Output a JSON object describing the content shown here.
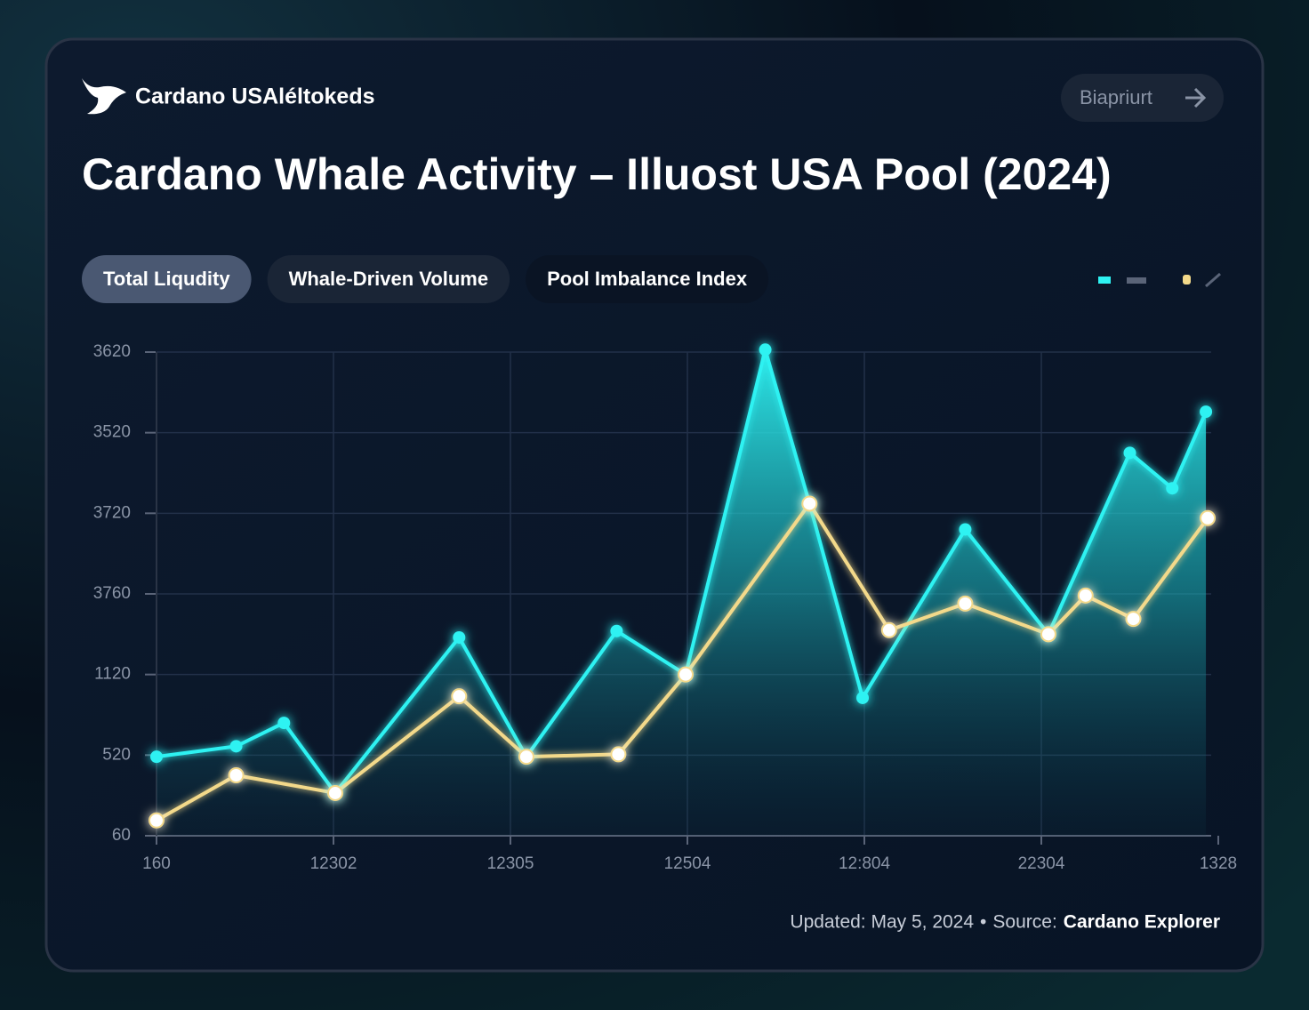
{
  "header": {
    "brand": "Cardano USAléltokeds",
    "button": "Biapriurt"
  },
  "tabs": [
    "Total Liqudity",
    "Whale-Driven Volume",
    "Pool Imbalance Index"
  ],
  "footer": {
    "updated": "Updated: May 5, 2024",
    "separator": "•",
    "source_label": "Source:",
    "source": "Cardano Explorer"
  },
  "chart_data": {
    "type": "area",
    "title": "Cardano Whale Activity – Illuost USA Pool (2024)",
    "xlim": [
      0,
      6
    ],
    "xticks": [
      {
        "value": 0,
        "label": "160"
      },
      {
        "value": 1,
        "label": "12302"
      },
      {
        "value": 2,
        "label": "12305"
      },
      {
        "value": 3,
        "label": "12504"
      },
      {
        "value": 4,
        "label": "12:804"
      },
      {
        "value": 5,
        "label": "22304"
      },
      {
        "value": 6,
        "label": "1328"
      }
    ],
    "ylim": [
      0,
      6
    ],
    "yticks": [
      {
        "value": 0,
        "label": "60"
      },
      {
        "value": 1,
        "label": "520"
      },
      {
        "value": 2,
        "label": "1120"
      },
      {
        "value": 3,
        "label": "3760"
      },
      {
        "value": 4,
        "label": "3720"
      },
      {
        "value": 5,
        "label": "3520"
      },
      {
        "value": 6,
        "label": "3620"
      }
    ],
    "grid": true,
    "series": [
      {
        "color": "#2ef2f2",
        "fill": true,
        "x": [
          0,
          0.45,
          0.72,
          1.01,
          1.71,
          2.09,
          2.6,
          2.99,
          3.44,
          3.69,
          3.99,
          4.57,
          5.04,
          5.5,
          5.74,
          5.93
        ],
        "values": [
          0.98,
          1.11,
          1.4,
          0.53,
          2.46,
          0.98,
          2.54,
          2.0,
          6.03,
          4.12,
          1.71,
          3.8,
          2.5,
          4.75,
          4.31,
          5.26
        ]
      },
      {
        "color": "#f3d98a",
        "fill": false,
        "x": [
          0,
          0.45,
          1.01,
          1.71,
          2.09,
          2.61,
          2.99,
          3.69,
          4.14,
          4.57,
          5.04,
          5.25,
          5.52,
          5.94
        ],
        "values": [
          0.19,
          0.75,
          0.53,
          1.73,
          0.98,
          1.01,
          2.0,
          4.12,
          2.55,
          2.88,
          2.5,
          2.98,
          2.69,
          3.94
        ]
      }
    ]
  }
}
